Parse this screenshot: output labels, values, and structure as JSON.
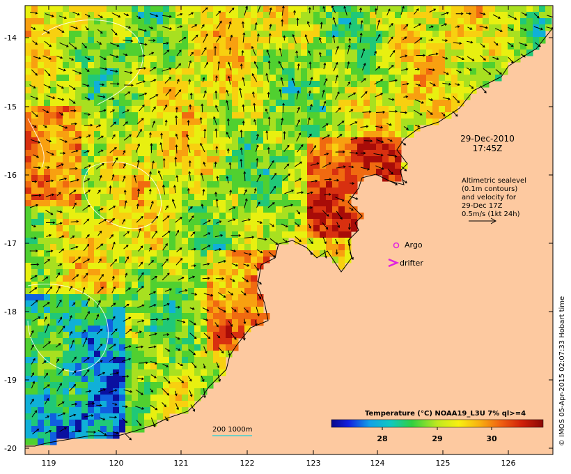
{
  "map": {
    "date": "29-Dec-2010",
    "time": "17:45Z",
    "lat_ticks": [
      "-14",
      "-15",
      "-16",
      "-17",
      "-18",
      "-19",
      "-20"
    ],
    "lon_ticks": [
      "119",
      "120",
      "121",
      "122",
      "123",
      "124",
      "125",
      "126"
    ],
    "altimetry_note": {
      "line1": "Altimetric sealevel",
      "line2": "(0.1m contours)",
      "line3": "and velocity for",
      "line4": "29-Dec 17Z",
      "line5": "0.5m/s (1kt 24h)"
    },
    "legend": {
      "argo": "Argo",
      "drifter": "drifter",
      "depth": "200  1000m",
      "colorbar_title": "Temperature (°C) NOAA19_L3U 7% ql>=4",
      "colorbar_ticks": [
        "28",
        "29",
        "30"
      ]
    },
    "credit": "© IMOS 05-Apr-2015 02:07:33 Hobart time",
    "colors": {
      "land": "#fdc9a0",
      "argo": "#e020e0",
      "drifter": "#e020e0",
      "isobath": "#3fd0d0"
    }
  }
}
